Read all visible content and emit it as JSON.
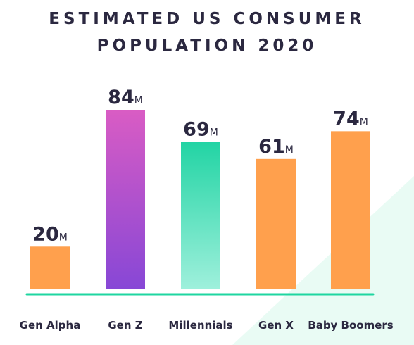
{
  "chart_data": {
    "type": "bar",
    "title_lines": [
      "ESTIMATED US CONSUMER",
      "POPULATION 2020"
    ],
    "categories": [
      "Gen Alpha",
      "Gen Z",
      "Millennials",
      "Gen X",
      "Baby Boomers"
    ],
    "values": [
      20,
      84,
      69,
      61,
      74
    ],
    "value_labels": [
      "20",
      "84",
      "69",
      "61",
      "74"
    ],
    "unit_suffix": "M",
    "xlabel": "",
    "ylabel": "",
    "ylim": [
      0,
      84
    ],
    "grid": false,
    "legend": "none",
    "bar_colors": [
      "#ffa04d",
      "gradient-pink-purple",
      "gradient-teal",
      "#ffa04d",
      "#ffa04d"
    ],
    "colors": {
      "orange": "#ffa04d",
      "genz_top": "#d95cc4",
      "genz_bottom": "#8747d6",
      "mill_top": "#22d4a4",
      "mill_bottom": "#9ff0dc",
      "baseline": "#1fd6a0",
      "text": "#2b2840",
      "background_accent": "#e9fbf4"
    }
  }
}
